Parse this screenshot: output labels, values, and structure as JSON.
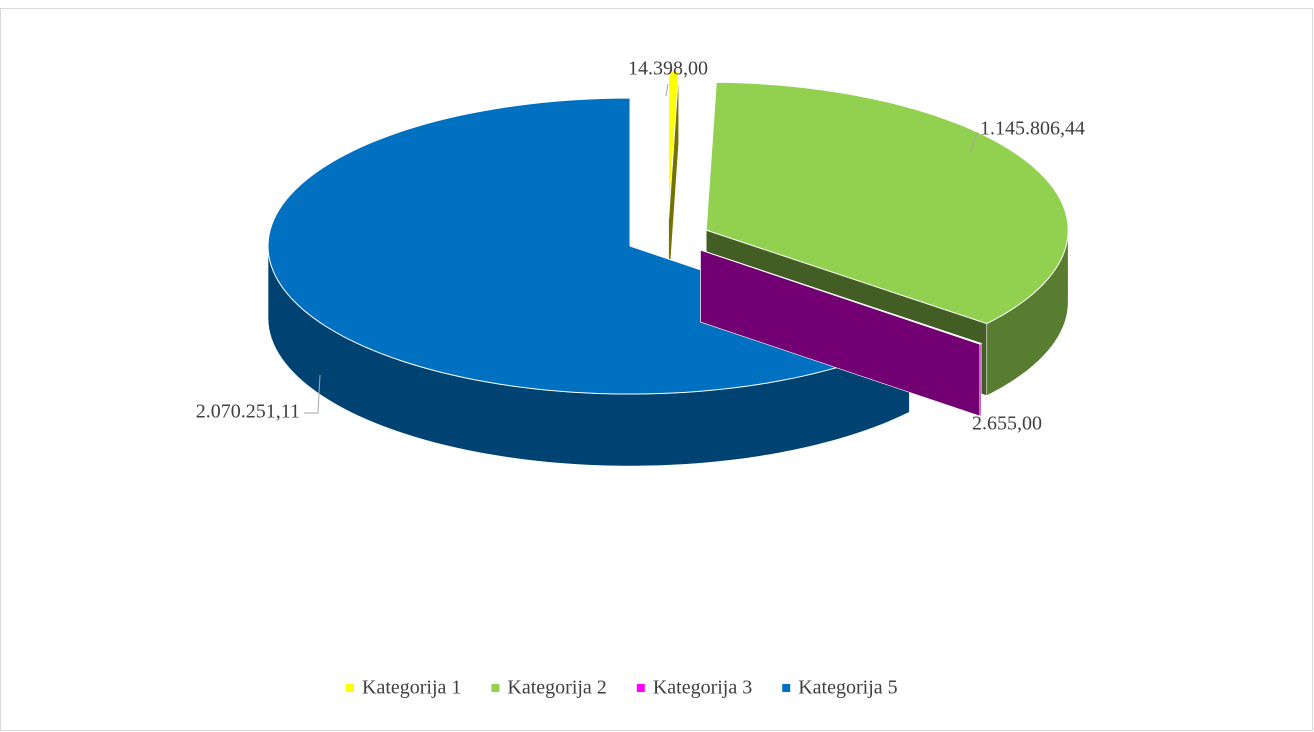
{
  "chart_data": {
    "type": "pie",
    "categories": [
      "Kategorija 1",
      "Kategorija 2",
      "Kategorija 3",
      "Kategorija 5"
    ],
    "values": [
      14398.0,
      1145806.44,
      2655.0,
      2070251.11
    ],
    "value_labels": [
      "14.398,00",
      "1.145.806,44",
      "2.655,00",
      "2.070.251,11"
    ],
    "colors": [
      "#ffff00",
      "#92d050",
      "#ff00ff",
      "#0070c0"
    ],
    "legend": "bottom"
  }
}
